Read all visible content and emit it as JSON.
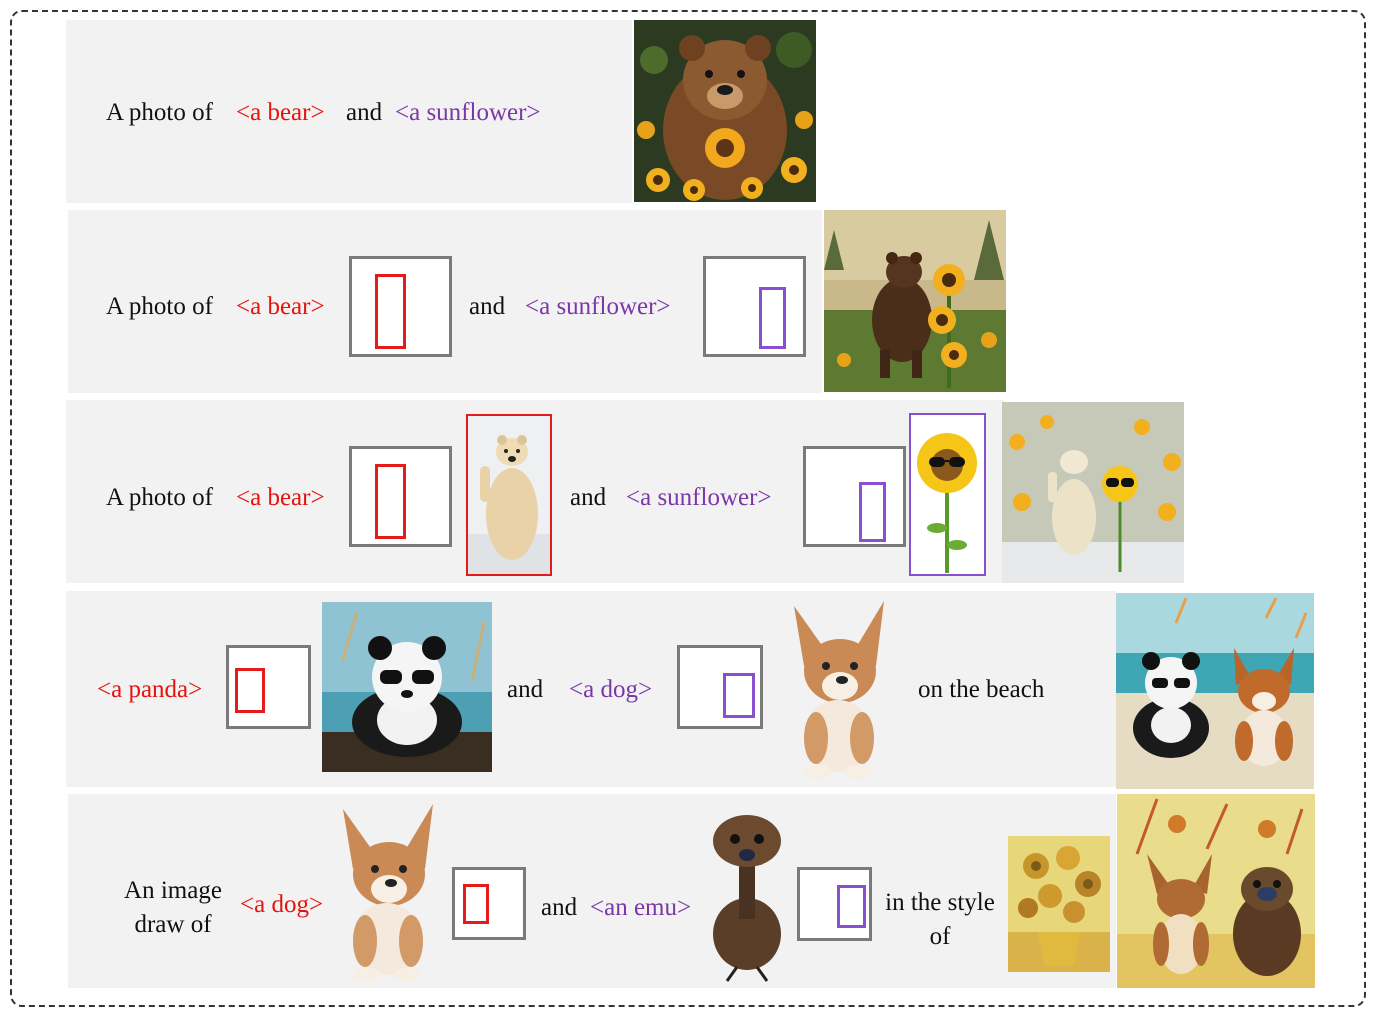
{
  "rows": [
    {
      "parts": [
        "A photo of",
        "<a bear>",
        "and",
        "<a sunflower>"
      ],
      "output_image": "bear-with-sunflowers-photo"
    },
    {
      "parts": [
        "A photo of",
        "<a bear>",
        "and",
        "<a sunflower>"
      ],
      "output_image": "bear-standing-by-sunflower-photo"
    },
    {
      "parts": [
        "A photo of",
        "<a bear>",
        "and",
        "<a sunflower>"
      ],
      "reference_images": [
        "polar-bear-reference",
        "sunflower-with-sunglasses-reference"
      ],
      "output_image": "polar-bear-and-sunflower-photo"
    },
    {
      "parts": [
        "<a panda>",
        "and",
        "<a dog>",
        "on the beach"
      ],
      "reference_images": [
        "panda-with-sunglasses-reference",
        "corgi-puppy-reference"
      ],
      "output_image": "panda-and-corgi-on-beach"
    },
    {
      "parts": [
        "An image",
        "draw of",
        "<a dog>",
        "and",
        "<an emu>",
        "in the style",
        "of"
      ],
      "reference_images": [
        "corgi-puppy-reference",
        "emu-chick-reference",
        "sunflowers-painting-reference"
      ],
      "output_image": "dog-and-emu-painted-style"
    }
  ],
  "colors": {
    "subject_red": "#e8120c",
    "subject_purple": "#7b36a8",
    "row_background": "#f2f2f2",
    "layout_border": "#7a7a7a"
  }
}
